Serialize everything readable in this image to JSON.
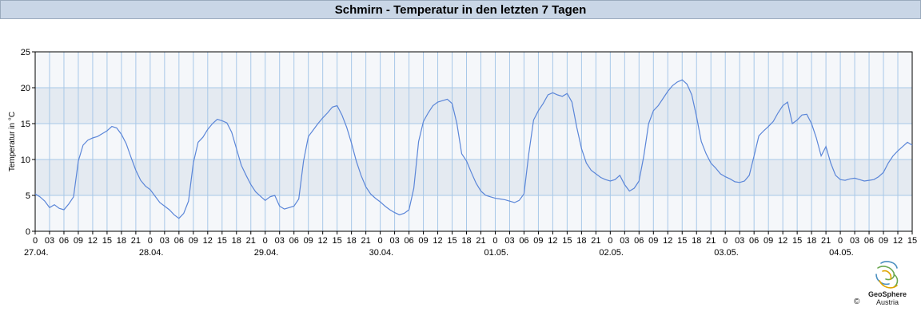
{
  "header": {
    "title": "Schmirn - Temperatur in den letzten 7 Tagen"
  },
  "logo": {
    "name": "GeoSphere",
    "sub": "Austria",
    "copyright": "©"
  },
  "colors": {
    "line": "#5b86d8",
    "band_light": "#f5f7fa",
    "band_dark": "#e4eaf1",
    "grid": "#a8c8e8",
    "axis": "#000000",
    "title_bg": "#c9d6e6"
  },
  "chart_data": {
    "type": "line",
    "title": "Schmirn - Temperatur in den letzten 7 Tagen",
    "ylabel": "Temperatur in °C",
    "xlabel": "",
    "ylim": [
      0,
      25
    ],
    "yticks": [
      0,
      5,
      10,
      15,
      20,
      25
    ],
    "x_hour_range": [
      0,
      183
    ],
    "hour_tick_labels": [
      "0",
      "03",
      "06",
      "09",
      "12",
      "15",
      "18",
      "21",
      "0",
      "03",
      "06",
      "09",
      "12",
      "15",
      "18",
      "21",
      "0",
      "03",
      "06",
      "09",
      "12",
      "15",
      "18",
      "21",
      "0",
      "03",
      "06",
      "09",
      "12",
      "15",
      "18",
      "21",
      "0",
      "03",
      "06",
      "09",
      "12",
      "15",
      "18",
      "21",
      "0",
      "03",
      "06",
      "09",
      "12",
      "15",
      "18",
      "21",
      "0",
      "03",
      "06",
      "09",
      "12",
      "15",
      "18",
      "21",
      "0",
      "03",
      "06",
      "09",
      "12",
      "15"
    ],
    "date_labels": [
      "27.04.",
      "28.04.",
      "29.04.",
      "30.04.",
      "01.05.",
      "02.05.",
      "03.05.",
      "04.05."
    ],
    "grid": true,
    "series": [
      {
        "color": "#5b86d8",
        "points": [
          [
            0,
            5.2
          ],
          [
            1,
            4.8
          ],
          [
            2,
            4.2
          ],
          [
            3,
            3.3
          ],
          [
            4,
            3.7
          ],
          [
            5,
            3.2
          ],
          [
            6,
            3.0
          ],
          [
            7,
            3.8
          ],
          [
            8,
            4.8
          ],
          [
            9,
            9.8
          ],
          [
            10,
            12.0
          ],
          [
            11,
            12.7
          ],
          [
            12,
            13.0
          ],
          [
            13,
            13.2
          ],
          [
            14,
            13.6
          ],
          [
            15,
            14.0
          ],
          [
            16,
            14.6
          ],
          [
            17,
            14.4
          ],
          [
            18,
            13.5
          ],
          [
            19,
            12.2
          ],
          [
            20,
            10.3
          ],
          [
            21,
            8.5
          ],
          [
            22,
            7.1
          ],
          [
            23,
            6.3
          ],
          [
            24,
            5.8
          ],
          [
            25,
            4.9
          ],
          [
            26,
            4.0
          ],
          [
            27,
            3.5
          ],
          [
            28,
            3.0
          ],
          [
            29,
            2.3
          ],
          [
            30,
            1.8
          ],
          [
            31,
            2.5
          ],
          [
            32,
            4.2
          ],
          [
            33,
            9.5
          ],
          [
            34,
            12.4
          ],
          [
            35,
            13.1
          ],
          [
            36,
            14.2
          ],
          [
            37,
            15.0
          ],
          [
            38,
            15.6
          ],
          [
            39,
            15.4
          ],
          [
            40,
            15.1
          ],
          [
            41,
            13.8
          ],
          [
            42,
            11.5
          ],
          [
            43,
            9.2
          ],
          [
            44,
            7.8
          ],
          [
            45,
            6.5
          ],
          [
            46,
            5.5
          ],
          [
            47,
            4.9
          ],
          [
            48,
            4.3
          ],
          [
            49,
            4.8
          ],
          [
            50,
            5.0
          ],
          [
            51,
            3.5
          ],
          [
            52,
            3.1
          ],
          [
            53,
            3.3
          ],
          [
            54,
            3.5
          ],
          [
            55,
            4.5
          ],
          [
            56,
            9.8
          ],
          [
            57,
            13.2
          ],
          [
            58,
            14.1
          ],
          [
            59,
            15.0
          ],
          [
            60,
            15.8
          ],
          [
            61,
            16.5
          ],
          [
            62,
            17.3
          ],
          [
            63,
            17.5
          ],
          [
            64,
            16.2
          ],
          [
            65,
            14.5
          ],
          [
            66,
            12.3
          ],
          [
            67,
            9.8
          ],
          [
            68,
            7.8
          ],
          [
            69,
            6.2
          ],
          [
            70,
            5.2
          ],
          [
            71,
            4.6
          ],
          [
            72,
            4.1
          ],
          [
            73,
            3.5
          ],
          [
            74,
            3.0
          ],
          [
            75,
            2.6
          ],
          [
            76,
            2.3
          ],
          [
            77,
            2.5
          ],
          [
            78,
            3.0
          ],
          [
            79,
            6.0
          ],
          [
            80,
            12.5
          ],
          [
            81,
            15.3
          ],
          [
            82,
            16.5
          ],
          [
            83,
            17.5
          ],
          [
            84,
            18.0
          ],
          [
            85,
            18.2
          ],
          [
            86,
            18.4
          ],
          [
            87,
            17.8
          ],
          [
            88,
            15.0
          ],
          [
            89,
            10.8
          ],
          [
            90,
            9.8
          ],
          [
            91,
            8.2
          ],
          [
            92,
            6.7
          ],
          [
            93,
            5.6
          ],
          [
            94,
            5.0
          ],
          [
            95,
            4.8
          ],
          [
            96,
            4.6
          ],
          [
            97,
            4.5
          ],
          [
            98,
            4.4
          ],
          [
            99,
            4.2
          ],
          [
            100,
            4.0
          ],
          [
            101,
            4.3
          ],
          [
            102,
            5.2
          ],
          [
            103,
            10.8
          ],
          [
            104,
            15.5
          ],
          [
            105,
            16.8
          ],
          [
            106,
            17.8
          ],
          [
            107,
            19.0
          ],
          [
            108,
            19.3
          ],
          [
            109,
            19.0
          ],
          [
            110,
            18.8
          ],
          [
            111,
            19.2
          ],
          [
            112,
            18.0
          ],
          [
            113,
            14.5
          ],
          [
            114,
            11.5
          ],
          [
            115,
            9.5
          ],
          [
            116,
            8.5
          ],
          [
            117,
            8.0
          ],
          [
            118,
            7.5
          ],
          [
            119,
            7.2
          ],
          [
            120,
            7.0
          ],
          [
            121,
            7.2
          ],
          [
            122,
            7.8
          ],
          [
            123,
            6.5
          ],
          [
            124,
            5.6
          ],
          [
            125,
            6.0
          ],
          [
            126,
            7.0
          ],
          [
            127,
            10.5
          ],
          [
            128,
            15.0
          ],
          [
            129,
            16.8
          ],
          [
            130,
            17.5
          ],
          [
            131,
            18.5
          ],
          [
            132,
            19.5
          ],
          [
            133,
            20.3
          ],
          [
            134,
            20.8
          ],
          [
            135,
            21.1
          ],
          [
            136,
            20.5
          ],
          [
            137,
            19.0
          ],
          [
            138,
            16.0
          ],
          [
            139,
            12.5
          ],
          [
            140,
            10.8
          ],
          [
            141,
            9.5
          ],
          [
            142,
            8.8
          ],
          [
            143,
            8.0
          ],
          [
            144,
            7.6
          ],
          [
            145,
            7.3
          ],
          [
            146,
            6.9
          ],
          [
            147,
            6.8
          ],
          [
            148,
            7.0
          ],
          [
            149,
            7.8
          ],
          [
            150,
            10.5
          ],
          [
            151,
            13.3
          ],
          [
            152,
            14.0
          ],
          [
            153,
            14.6
          ],
          [
            154,
            15.3
          ],
          [
            155,
            16.5
          ],
          [
            156,
            17.5
          ],
          [
            157,
            18.0
          ],
          [
            158,
            15.0
          ],
          [
            159,
            15.5
          ],
          [
            160,
            16.2
          ],
          [
            161,
            16.3
          ],
          [
            162,
            15.0
          ],
          [
            163,
            13.0
          ],
          [
            164,
            10.5
          ],
          [
            165,
            11.8
          ],
          [
            166,
            9.5
          ],
          [
            167,
            7.8
          ],
          [
            168,
            7.2
          ],
          [
            169,
            7.1
          ],
          [
            170,
            7.3
          ],
          [
            171,
            7.4
          ],
          [
            172,
            7.2
          ],
          [
            173,
            7.0
          ],
          [
            174,
            7.1
          ],
          [
            175,
            7.2
          ],
          [
            176,
            7.6
          ],
          [
            177,
            8.2
          ],
          [
            178,
            9.5
          ],
          [
            179,
            10.5
          ],
          [
            180,
            11.2
          ],
          [
            181,
            11.8
          ],
          [
            182,
            12.4
          ],
          [
            183,
            12.0
          ]
        ]
      }
    ]
  }
}
